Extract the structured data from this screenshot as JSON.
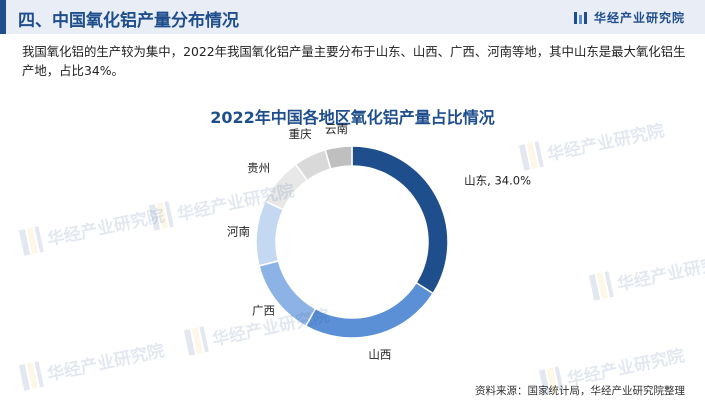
{
  "header": {
    "title": "四、中国氧化铝产量分布情况"
  },
  "brand": {
    "name": "华经产业研究院"
  },
  "intro": {
    "text": "我国氧化铝的生产较为集中，2022年我国氧化铝产量主要分布于山东、山西、广西、河南等地，其中山东是最大氧化铝生产地，占比34%。"
  },
  "watermark": {
    "text": "华经产业研究院"
  },
  "chart_data": {
    "type": "pie",
    "variant": "donut",
    "title": "2022年中国各地区氧化铝产量占比情况",
    "unit": "%",
    "slices": [
      {
        "label": "山东, 34.0%",
        "value": 34.0,
        "color": "#1f4e8c"
      },
      {
        "label": "山西",
        "value": 24.0,
        "color": "#5b8fd6"
      },
      {
        "label": "广西",
        "value": 13.0,
        "color": "#8db3e6"
      },
      {
        "label": "河南",
        "value": 11.0,
        "color": "#c5d8f1"
      },
      {
        "label": "贵州",
        "value": 8.0,
        "color": "#e8e8e8"
      },
      {
        "label": "重庆",
        "value": 5.5,
        "color": "#d9d9d9"
      },
      {
        "label": "云南",
        "value": 4.5,
        "color": "#bfbfbf"
      }
    ]
  },
  "source": {
    "text": "资料来源：国家统计局，华经产业研究院整理"
  }
}
